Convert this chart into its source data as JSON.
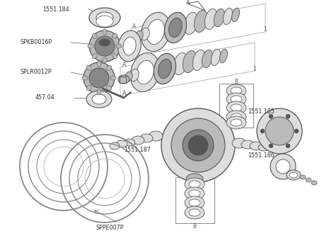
{
  "bg_color": "#ffffff",
  "dark": "#555555",
  "med": "#888888",
  "light": "#bbbbbb",
  "vlight": "#dddddd",
  "line_color": "#aaaaaa",
  "labels": {
    "1551_184": "1551.184",
    "SPKB0016P": "SPKB0016P",
    "SPLR0012P": "SPLR0012P",
    "457_04": "457.04",
    "1551_185": "1551.185",
    "1551_187": "1551.187",
    "1551_186": "1551.186",
    "SPPE007P": "SPPE007P"
  }
}
